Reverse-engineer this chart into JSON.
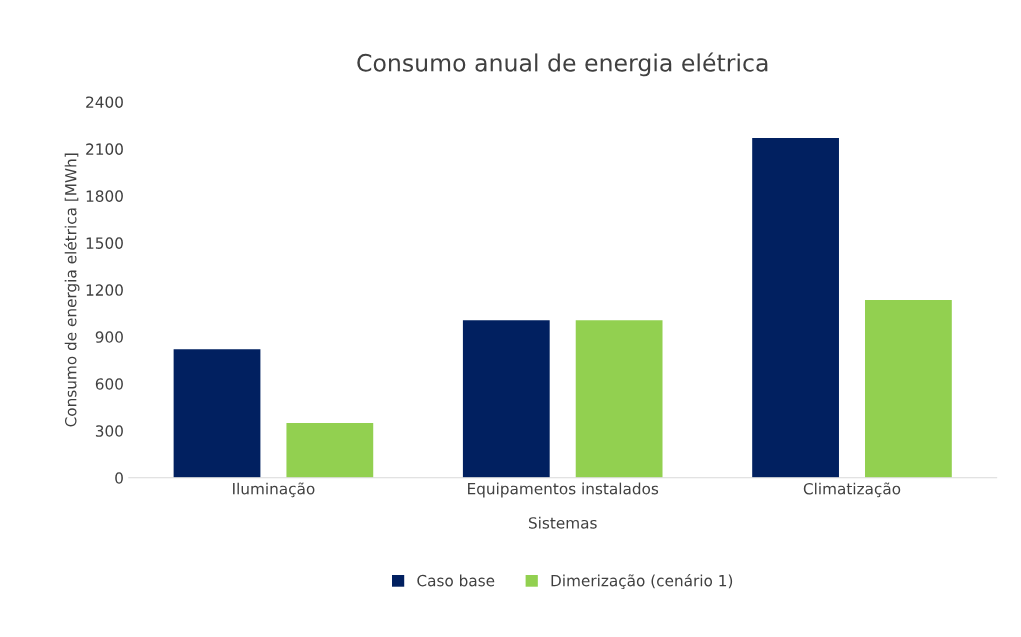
{
  "chart_data": {
    "type": "bar",
    "title": "Consumo anual de energia elétrica",
    "xlabel": "Sistemas",
    "ylabel": "Consumo de energia elétrica [MWh]",
    "categories": [
      "Iluminação",
      "Equipamentos instalados",
      "Climatização"
    ],
    "series": [
      {
        "name": "Caso base",
        "color": "#012060",
        "values": [
          820,
          1005,
          2170
        ]
      },
      {
        "name": "Dimerização (cenário 1)",
        "color": "#92d050",
        "values": [
          350,
          1005,
          1135
        ]
      }
    ],
    "ylim": [
      0,
      2400
    ],
    "yticks": [
      0,
      300,
      600,
      900,
      1200,
      1500,
      1800,
      2100,
      2400
    ],
    "grid": false,
    "legend": "bottom"
  }
}
